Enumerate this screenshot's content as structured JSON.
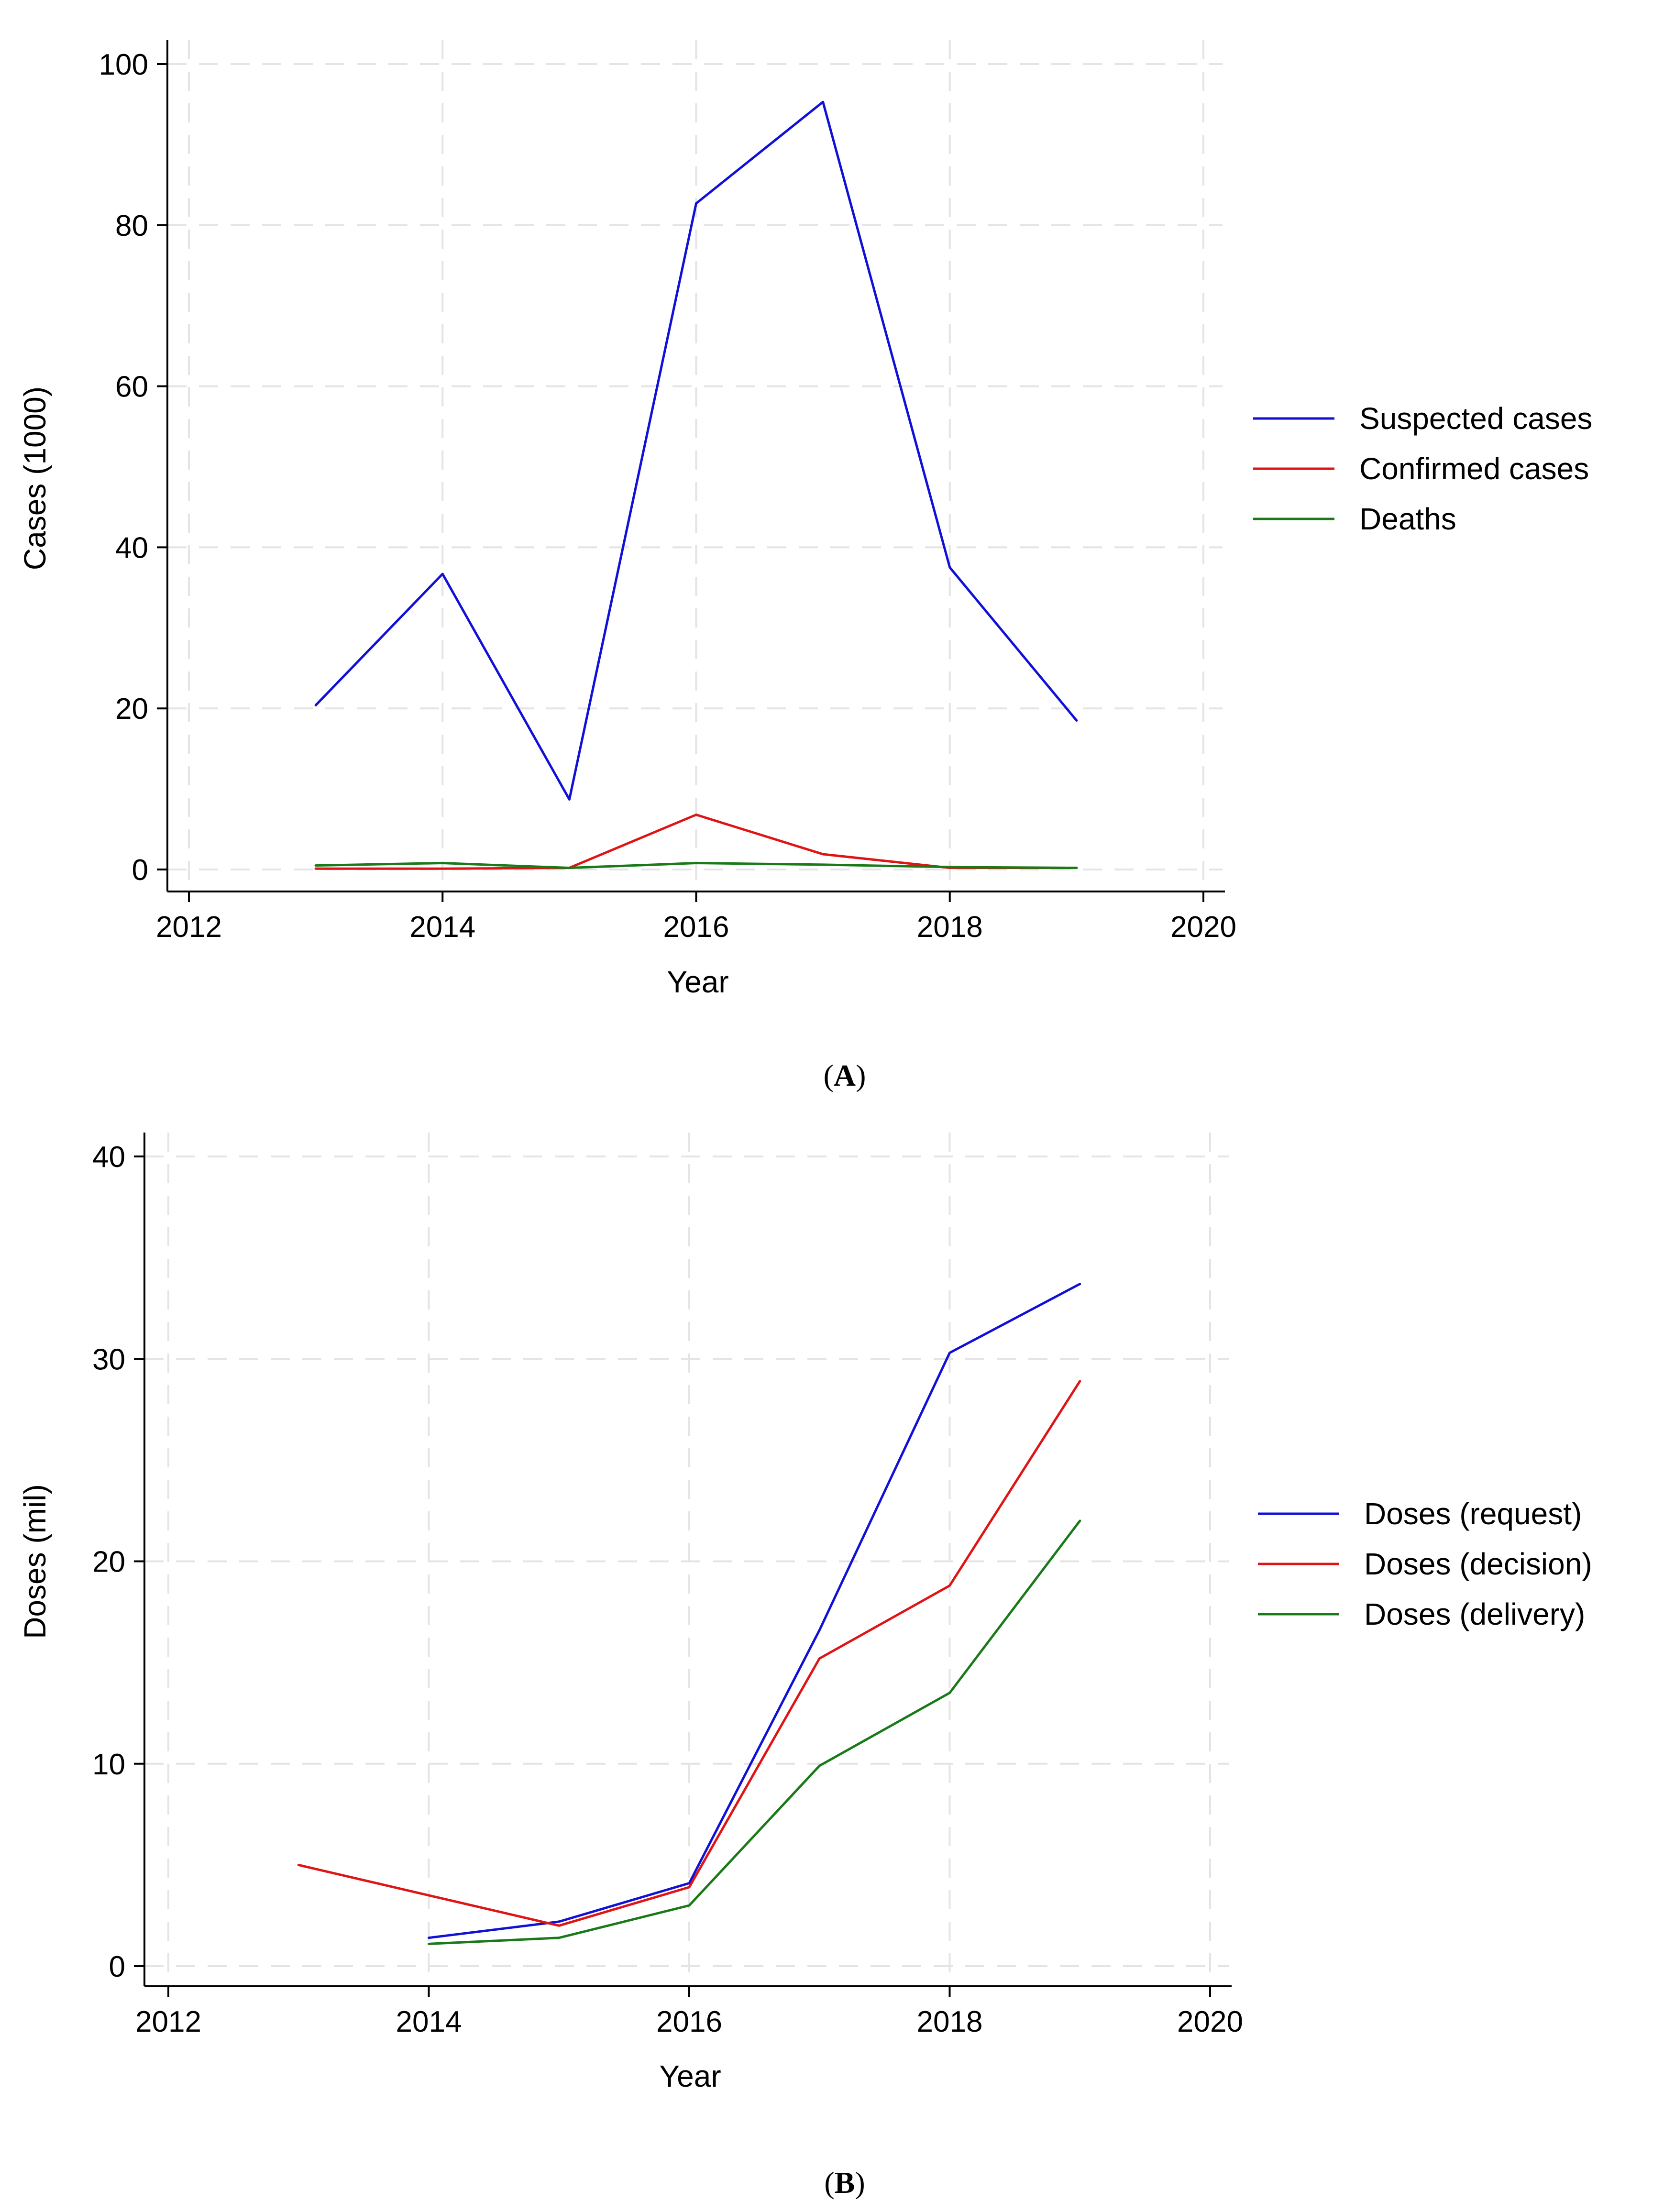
{
  "chart_data": [
    {
      "type": "line",
      "panel_label": "A",
      "xlabel": "Year",
      "ylabel": "Cases (1000)",
      "xlim": [
        2012,
        2020
      ],
      "ylim": [
        0,
        100
      ],
      "xticks": [
        "2012",
        "2014",
        "2016",
        "2018",
        "2020"
      ],
      "yticks": [
        "0",
        "20",
        "40",
        "60",
        "80",
        "100"
      ],
      "grid": true,
      "legend_position": "right",
      "series": [
        {
          "name": "Suspected cases",
          "color": "#1010d8",
          "x": [
            2013,
            2014,
            2015,
            2016,
            2017,
            2018,
            2019
          ],
          "y": [
            20.4,
            36.7,
            8.7,
            82.7,
            95.3,
            37.5,
            18.5
          ]
        },
        {
          "name": "Confirmed cases",
          "color": "#e01414",
          "x": [
            2013,
            2014,
            2015,
            2016,
            2017,
            2018,
            2019
          ],
          "y": [
            0.1,
            0.1,
            0.2,
            6.8,
            1.9,
            0.2,
            0.2
          ]
        },
        {
          "name": "Deaths",
          "color": "#1a7a1a",
          "x": [
            2013,
            2014,
            2015,
            2016,
            2017,
            2018,
            2019
          ],
          "y": [
            0.5,
            0.8,
            0.2,
            0.8,
            0.6,
            0.3,
            0.2
          ]
        }
      ]
    },
    {
      "type": "line",
      "panel_label": "B",
      "xlabel": "Year",
      "ylabel": "Doses (mil)",
      "xlim": [
        2012,
        2020
      ],
      "ylim": [
        0,
        40
      ],
      "xticks": [
        "2012",
        "2014",
        "2016",
        "2018",
        "2020"
      ],
      "yticks": [
        "0",
        "10",
        "20",
        "30",
        "40"
      ],
      "grid": true,
      "legend_position": "right",
      "series": [
        {
          "name": "Doses (request)",
          "color": "#1010d8",
          "x": [
            2014,
            2015,
            2016,
            2017,
            2018,
            2019
          ],
          "y": [
            1.4,
            2.2,
            4.1,
            16.6,
            30.3,
            33.7
          ]
        },
        {
          "name": "Doses (decision)",
          "color": "#e01414",
          "x": [
            2013,
            2014,
            2015,
            2016,
            2017,
            2018,
            2019
          ],
          "y": [
            5.0,
            3.5,
            2.0,
            3.9,
            15.2,
            18.8,
            28.9
          ]
        },
        {
          "name": "Doses (delivery)",
          "color": "#1a7a1a",
          "x": [
            2014,
            2015,
            2016,
            2017,
            2018,
            2019
          ],
          "y": [
            1.1,
            1.4,
            3.0,
            9.9,
            13.5,
            22.0
          ]
        }
      ]
    }
  ]
}
